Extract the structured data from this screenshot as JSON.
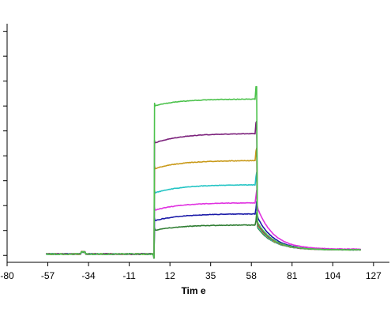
{
  "chart_data": {
    "type": "line",
    "title": "",
    "xlabel": "Tim e",
    "ylabel": "",
    "xlim": [
      -80,
      136
    ],
    "ylim": [
      -10,
      335
    ],
    "x_ticks": [
      -80,
      -57,
      -34,
      -11,
      12,
      35,
      58,
      81,
      104,
      127
    ],
    "x_tick_labels": [
      "-80",
      "-57",
      "-34",
      "-11",
      "12",
      "35",
      "58",
      "81",
      "104",
      "127"
    ],
    "y_ticks": [
      0,
      36,
      72,
      108,
      144,
      180,
      216,
      252,
      288,
      324
    ],
    "y_tick_labels_visible": false,
    "grid": false,
    "legend": "none",
    "series": [
      {
        "color": "#2e7d32",
        "baseline": 2,
        "association_start": 36,
        "association_end": 44,
        "dissociation_start": 42,
        "dissociation_end": 8
      },
      {
        "color": "#1a1aa8",
        "baseline": 2,
        "association_start": 50,
        "association_end": 60,
        "dissociation_start": 58,
        "dissociation_end": 8
      },
      {
        "color": "#e032e0",
        "baseline": 2,
        "association_start": 65,
        "association_end": 76,
        "dissociation_start": 72,
        "dissociation_end": 9
      },
      {
        "color": "#22c4c4",
        "baseline": 2,
        "association_start": 90,
        "association_end": 102,
        "dissociation_start": 44,
        "dissociation_end": 8
      },
      {
        "color": "#c99a1a",
        "baseline": 2,
        "association_start": 125,
        "association_end": 137,
        "dissociation_start": 46,
        "dissociation_end": 8
      },
      {
        "color": "#7a1f7a",
        "baseline": 2,
        "association_start": 162,
        "association_end": 176,
        "dissociation_start": 48,
        "dissociation_end": 8
      },
      {
        "color": "#4cc24c",
        "baseline": 2,
        "association_start": 216,
        "association_end": 226,
        "dissociation_start": 50,
        "dissociation_end": 8
      }
    ],
    "injection_start_x": 3,
    "injection_end_x": 61,
    "data_start_x": -58,
    "data_end_x": 120
  }
}
